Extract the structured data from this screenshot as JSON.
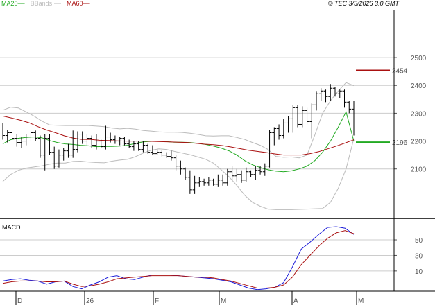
{
  "header": {
    "legend": [
      {
        "name": "MA20",
        "color": "#22aa22"
      },
      {
        "name": "BBands",
        "color": "#bbbbbb"
      },
      {
        "name": "MA60",
        "color": "#aa1111"
      }
    ],
    "watermark": "© TEC 3/5/2026 3:0 GMT"
  },
  "chart_data": [
    {
      "type": "bar",
      "subtype": "ohlc",
      "y_ticks": [
        "2100",
        "2200",
        "2300",
        "2400",
        "2500"
      ],
      "ylim": [
        1925,
        2672
      ],
      "x_labels": [
        "D",
        "26",
        "F",
        "M",
        "A",
        "M"
      ],
      "grid": true,
      "legend_position": "top-left",
      "markers": [
        {
          "label": "2454",
          "value": 2454,
          "color": "#aa1111"
        },
        {
          "label": "2196",
          "value": 2196,
          "color": "#22aa22"
        }
      ],
      "series": [
        {
          "name": "MA20",
          "color": "#22aa22",
          "values": [
            2190,
            2205,
            2210,
            2213,
            2215,
            2212,
            2202,
            2195,
            2190,
            2188,
            2185,
            2183,
            2180,
            2181,
            2181,
            2182,
            2185,
            2192,
            2197,
            2199,
            2199,
            2198,
            2196,
            2196,
            2195,
            2192,
            2188,
            2182,
            2175,
            2165,
            2150,
            2130,
            2115,
            2105,
            2097,
            2092,
            2090,
            2093,
            2100,
            2110,
            2130,
            2160,
            2200,
            2250,
            2305,
            2200
          ]
        },
        {
          "name": "BBands upper",
          "color": "#bbbbbb",
          "values": [
            2311,
            2322,
            2319,
            2305,
            2290,
            2272,
            2258,
            2257,
            2256,
            2256,
            2256,
            2256,
            2254,
            2252,
            2247,
            2244,
            2246,
            2243,
            2238,
            2236,
            2233,
            2232,
            2232,
            2231,
            2228,
            2224,
            2219,
            2218,
            2219,
            2219,
            2213,
            2206,
            2195,
            2185,
            2170,
            2145,
            2142,
            2143,
            2140,
            2150,
            2222,
            2300,
            2345,
            2380,
            2410,
            2399
          ]
        },
        {
          "name": "BBands lower",
          "color": "#bbbbbb",
          "values": [
            2055,
            2080,
            2095,
            2103,
            2107,
            2111,
            2117,
            2121,
            2121,
            2127,
            2128,
            2125,
            2123,
            2122,
            2128,
            2132,
            2135,
            2144,
            2157,
            2167,
            2172,
            2170,
            2163,
            2157,
            2151,
            2143,
            2135,
            2121,
            2097,
            2072,
            2041,
            2006,
            1980,
            1966,
            1956,
            1954,
            1954,
            1954,
            1955,
            1956,
            1957,
            1958,
            1980,
            2030,
            2100,
            2209
          ]
        },
        {
          "name": "MA60",
          "color": "#aa1111",
          "values": [
            2290,
            2283,
            2275,
            2266,
            2252,
            2240,
            2230,
            2219,
            2211,
            2206,
            2206,
            2203,
            2202,
            2201,
            2200,
            2200,
            2200,
            2199,
            2198,
            2197,
            2196,
            2195,
            2192,
            2189,
            2187,
            2184,
            2179,
            2173,
            2167,
            2163,
            2159,
            2154,
            2150,
            2150,
            2150,
            2155,
            2162,
            2172,
            2182,
            2193,
            2205
          ]
        }
      ],
      "bars": [
        {
          "o": 2240,
          "h": 2265,
          "l": 2205,
          "c": 2220
        },
        {
          "o": 2220,
          "h": 2240,
          "l": 2195,
          "c": 2230
        },
        {
          "o": 2230,
          "h": 2235,
          "l": 2200,
          "c": 2210
        },
        {
          "o": 2210,
          "h": 2225,
          "l": 2180,
          "c": 2195
        },
        {
          "o": 2195,
          "h": 2215,
          "l": 2175,
          "c": 2200
        },
        {
          "o": 2200,
          "h": 2225,
          "l": 2185,
          "c": 2215
        },
        {
          "o": 2215,
          "h": 2235,
          "l": 2200,
          "c": 2230
        },
        {
          "o": 2230,
          "h": 2238,
          "l": 2200,
          "c": 2210
        },
        {
          "o": 2210,
          "h": 2220,
          "l": 2140,
          "c": 2150
        },
        {
          "o": 2150,
          "h": 2225,
          "l": 2095,
          "c": 2210
        },
        {
          "o": 2210,
          "h": 2225,
          "l": 2150,
          "c": 2160
        },
        {
          "o": 2160,
          "h": 2180,
          "l": 2100,
          "c": 2110
        },
        {
          "o": 2110,
          "h": 2170,
          "l": 2105,
          "c": 2150
        },
        {
          "o": 2150,
          "h": 2175,
          "l": 2130,
          "c": 2165
        },
        {
          "o": 2165,
          "h": 2190,
          "l": 2140,
          "c": 2150
        },
        {
          "o": 2150,
          "h": 2238,
          "l": 2140,
          "c": 2170
        },
        {
          "o": 2170,
          "h": 2235,
          "l": 2160,
          "c": 2225
        },
        {
          "o": 2225,
          "h": 2235,
          "l": 2190,
          "c": 2200
        },
        {
          "o": 2200,
          "h": 2225,
          "l": 2185,
          "c": 2210
        },
        {
          "o": 2210,
          "h": 2220,
          "l": 2175,
          "c": 2185
        },
        {
          "o": 2185,
          "h": 2225,
          "l": 2170,
          "c": 2200
        },
        {
          "o": 2200,
          "h": 2205,
          "l": 2175,
          "c": 2180
        },
        {
          "o": 2180,
          "h": 2255,
          "l": 2170,
          "c": 2215
        },
        {
          "o": 2215,
          "h": 2230,
          "l": 2195,
          "c": 2205
        },
        {
          "o": 2205,
          "h": 2220,
          "l": 2190,
          "c": 2200
        },
        {
          "o": 2200,
          "h": 2215,
          "l": 2185,
          "c": 2210
        },
        {
          "o": 2210,
          "h": 2215,
          "l": 2185,
          "c": 2190
        },
        {
          "o": 2190,
          "h": 2205,
          "l": 2175,
          "c": 2180
        },
        {
          "o": 2180,
          "h": 2200,
          "l": 2165,
          "c": 2190
        },
        {
          "o": 2190,
          "h": 2200,
          "l": 2165,
          "c": 2170
        },
        {
          "o": 2170,
          "h": 2200,
          "l": 2160,
          "c": 2185
        },
        {
          "o": 2185,
          "h": 2190,
          "l": 2155,
          "c": 2160
        },
        {
          "o": 2160,
          "h": 2185,
          "l": 2150,
          "c": 2155
        },
        {
          "o": 2155,
          "h": 2170,
          "l": 2150,
          "c": 2160
        },
        {
          "o": 2160,
          "h": 2168,
          "l": 2145,
          "c": 2150
        },
        {
          "o": 2150,
          "h": 2160,
          "l": 2140,
          "c": 2145
        },
        {
          "o": 2145,
          "h": 2165,
          "l": 2130,
          "c": 2140
        },
        {
          "o": 2140,
          "h": 2150,
          "l": 2095,
          "c": 2110
        },
        {
          "o": 2110,
          "h": 2130,
          "l": 2080,
          "c": 2100
        },
        {
          "o": 2100,
          "h": 2105,
          "l": 2060,
          "c": 2070
        },
        {
          "o": 2070,
          "h": 2095,
          "l": 2010,
          "c": 2025
        },
        {
          "o": 2025,
          "h": 2075,
          "l": 2010,
          "c": 2050
        },
        {
          "o": 2050,
          "h": 2070,
          "l": 2035,
          "c": 2055
        },
        {
          "o": 2055,
          "h": 2065,
          "l": 2040,
          "c": 2050
        },
        {
          "o": 2050,
          "h": 2070,
          "l": 2040,
          "c": 2060
        },
        {
          "o": 2060,
          "h": 2065,
          "l": 2040,
          "c": 2045
        },
        {
          "o": 2045,
          "h": 2080,
          "l": 2035,
          "c": 2060
        },
        {
          "o": 2060,
          "h": 2080,
          "l": 2040,
          "c": 2050
        },
        {
          "o": 2050,
          "h": 2100,
          "l": 2040,
          "c": 2090
        },
        {
          "o": 2090,
          "h": 2110,
          "l": 2060,
          "c": 2075
        },
        {
          "o": 2075,
          "h": 2100,
          "l": 2055,
          "c": 2080
        },
        {
          "o": 2080,
          "h": 2095,
          "l": 2050,
          "c": 2060
        },
        {
          "o": 2060,
          "h": 2105,
          "l": 2055,
          "c": 2090
        },
        {
          "o": 2090,
          "h": 2095,
          "l": 2070,
          "c": 2080
        },
        {
          "o": 2080,
          "h": 2110,
          "l": 2060,
          "c": 2095
        },
        {
          "o": 2095,
          "h": 2110,
          "l": 2080,
          "c": 2090
        },
        {
          "o": 2090,
          "h": 2120,
          "l": 2075,
          "c": 2110
        },
        {
          "o": 2110,
          "h": 2240,
          "l": 2105,
          "c": 2230
        },
        {
          "o": 2230,
          "h": 2250,
          "l": 2185,
          "c": 2245
        },
        {
          "o": 2245,
          "h": 2260,
          "l": 2205,
          "c": 2220
        },
        {
          "o": 2220,
          "h": 2280,
          "l": 2210,
          "c": 2265
        },
        {
          "o": 2265,
          "h": 2290,
          "l": 2230,
          "c": 2280
        },
        {
          "o": 2280,
          "h": 2330,
          "l": 2230,
          "c": 2320
        },
        {
          "o": 2320,
          "h": 2330,
          "l": 2250,
          "c": 2260
        },
        {
          "o": 2260,
          "h": 2325,
          "l": 2250,
          "c": 2310
        },
        {
          "o": 2310,
          "h": 2320,
          "l": 2260,
          "c": 2270
        },
        {
          "o": 2270,
          "h": 2335,
          "l": 2210,
          "c": 2330
        },
        {
          "o": 2330,
          "h": 2380,
          "l": 2310,
          "c": 2370
        },
        {
          "o": 2370,
          "h": 2390,
          "l": 2345,
          "c": 2380
        },
        {
          "o": 2380,
          "h": 2385,
          "l": 2340,
          "c": 2360
        },
        {
          "o": 2360,
          "h": 2405,
          "l": 2345,
          "c": 2390
        },
        {
          "o": 2390,
          "h": 2395,
          "l": 2360,
          "c": 2370
        },
        {
          "o": 2370,
          "h": 2385,
          "l": 2355,
          "c": 2380
        },
        {
          "o": 2380,
          "h": 2385,
          "l": 2320,
          "c": 2340
        },
        {
          "o": 2340,
          "h": 2345,
          "l": 2300,
          "c": 2315
        },
        {
          "o": 2315,
          "h": 2345,
          "l": 2220,
          "c": 2225
        }
      ]
    },
    {
      "type": "line",
      "title": "MACD",
      "y_ticks": [
        "10",
        "30",
        "50"
      ],
      "ylim": [
        -16,
        75
      ],
      "series": [
        {
          "name": "MACD",
          "color": "#1a1ad8",
          "values": [
            -3,
            -1,
            0,
            -2,
            -3,
            -7,
            -4,
            -3,
            -10,
            -13,
            -8,
            -4,
            2,
            4,
            0,
            -1,
            2,
            5,
            5,
            5,
            4,
            3,
            2,
            1,
            0,
            -2,
            -4,
            -8,
            -12,
            -14,
            -13,
            -11,
            -5,
            15,
            38,
            47,
            57,
            66,
            67,
            65,
            57
          ]
        },
        {
          "name": "Signal",
          "color": "#aa1111",
          "values": [
            -6,
            -4,
            -3,
            -3,
            -3,
            -4,
            -4,
            -3,
            -7,
            -10,
            -9,
            -7,
            -4,
            0,
            1,
            2,
            3,
            4,
            4,
            4,
            4,
            3,
            2,
            2,
            1,
            -1,
            -3,
            -6,
            -9,
            -12,
            -12,
            -11,
            -8,
            2,
            18,
            30,
            42,
            52,
            59,
            62,
            58
          ]
        }
      ]
    }
  ]
}
